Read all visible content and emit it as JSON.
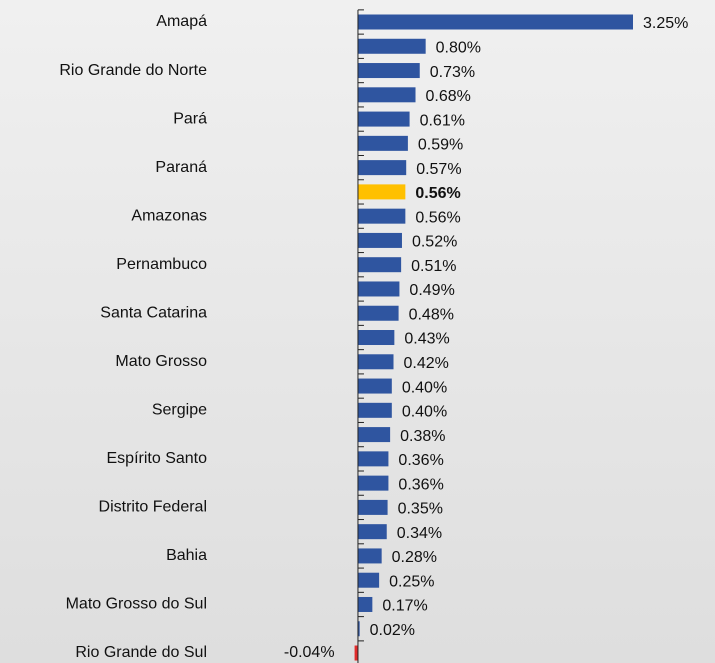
{
  "chart_data": {
    "type": "hbar",
    "categories": [
      "Amapá",
      null,
      "Rio Grande do Norte",
      null,
      "Pará",
      null,
      "Paraná",
      null,
      "Amazonas",
      null,
      "Pernambuco",
      null,
      "Santa Catarina",
      null,
      "Mato Grosso",
      null,
      "Sergipe",
      null,
      "Espírito Santo",
      null,
      "Distrito Federal",
      null,
      "Bahia",
      null,
      "Mato Grosso do Sul",
      null,
      "Rio Grande do Sul"
    ],
    "values": [
      3.25,
      0.8,
      0.73,
      0.68,
      0.61,
      0.59,
      0.57,
      0.56,
      0.56,
      0.52,
      0.51,
      0.49,
      0.48,
      0.43,
      0.42,
      0.4,
      0.4,
      0.38,
      0.36,
      0.36,
      0.35,
      0.34,
      0.28,
      0.25,
      0.17,
      0.02,
      -0.04
    ],
    "value_labels": [
      "3.25%",
      "0.80%",
      "0.73%",
      "0.68%",
      "0.61%",
      "0.59%",
      "0.57%",
      "0.56%",
      "0.56%",
      "0.52%",
      "0.51%",
      "0.49%",
      "0.48%",
      "0.43%",
      "0.42%",
      "0.40%",
      "0.40%",
      "0.38%",
      "0.36%",
      "0.36%",
      "0.35%",
      "0.34%",
      "0.28%",
      "0.25%",
      "0.17%",
      "0.02%",
      "-0.04%"
    ],
    "color": "#2f55a0",
    "highlight": 7,
    "highlight_color": "#ffc000",
    "negative_color": "#e02b2b",
    "xlim": [
      -0.1,
      3.25
    ]
  }
}
